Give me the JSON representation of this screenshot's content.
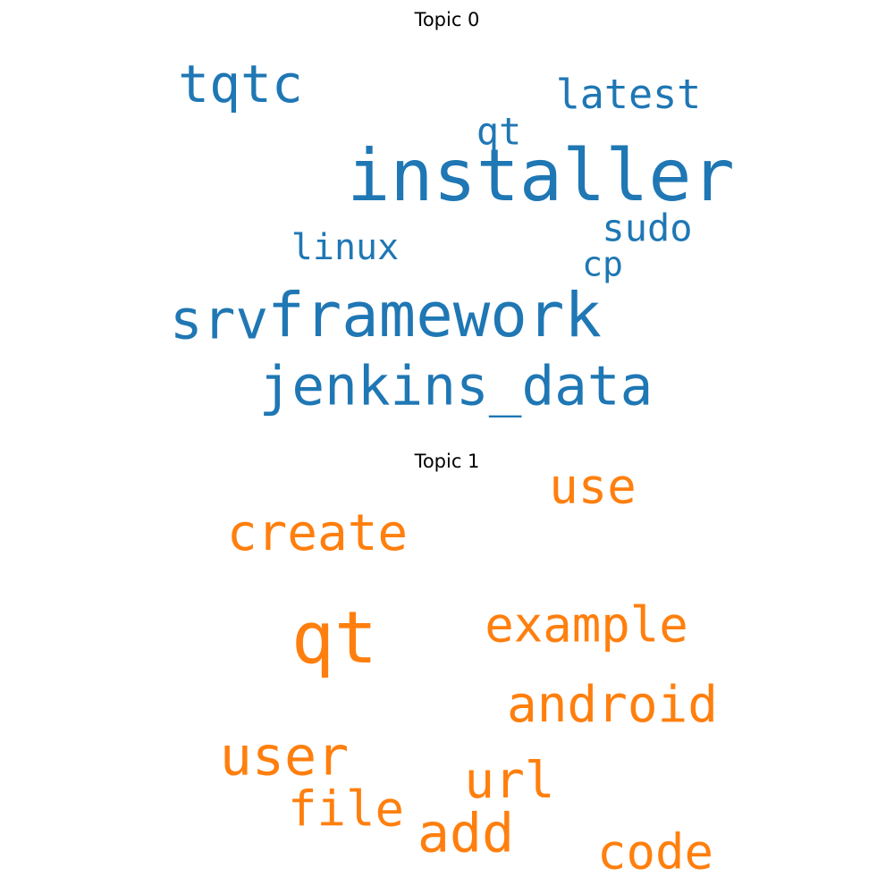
{
  "chart_data": [
    {
      "type": "wordcloud",
      "title": "Topic 0",
      "color": "#1f77b4",
      "words": [
        {
          "text": "installer",
          "weight": 1.0
        },
        {
          "text": "framework",
          "weight": 0.86
        },
        {
          "text": "jenkins_data",
          "weight": 0.76
        },
        {
          "text": "srv",
          "weight": 0.76
        },
        {
          "text": "tqtc",
          "weight": 0.72
        },
        {
          "text": "latest",
          "weight": 0.56
        },
        {
          "text": "sudo",
          "weight": 0.52
        },
        {
          "text": "qt",
          "weight": 0.52
        },
        {
          "text": "linux",
          "weight": 0.5
        },
        {
          "text": "cp",
          "weight": 0.48
        }
      ]
    },
    {
      "type": "wordcloud",
      "title": "Topic 1",
      "color": "#ff7f0e",
      "words": [
        {
          "text": "qt",
          "weight": 1.0
        },
        {
          "text": "user",
          "weight": 0.75
        },
        {
          "text": "add",
          "weight": 0.75
        },
        {
          "text": "create",
          "weight": 0.7
        },
        {
          "text": "android",
          "weight": 0.7
        },
        {
          "text": "url",
          "weight": 0.7
        },
        {
          "text": "code",
          "weight": 0.68
        },
        {
          "text": "example",
          "weight": 0.67
        },
        {
          "text": "use",
          "weight": 0.67
        },
        {
          "text": "file",
          "weight": 0.67
        }
      ]
    }
  ]
}
